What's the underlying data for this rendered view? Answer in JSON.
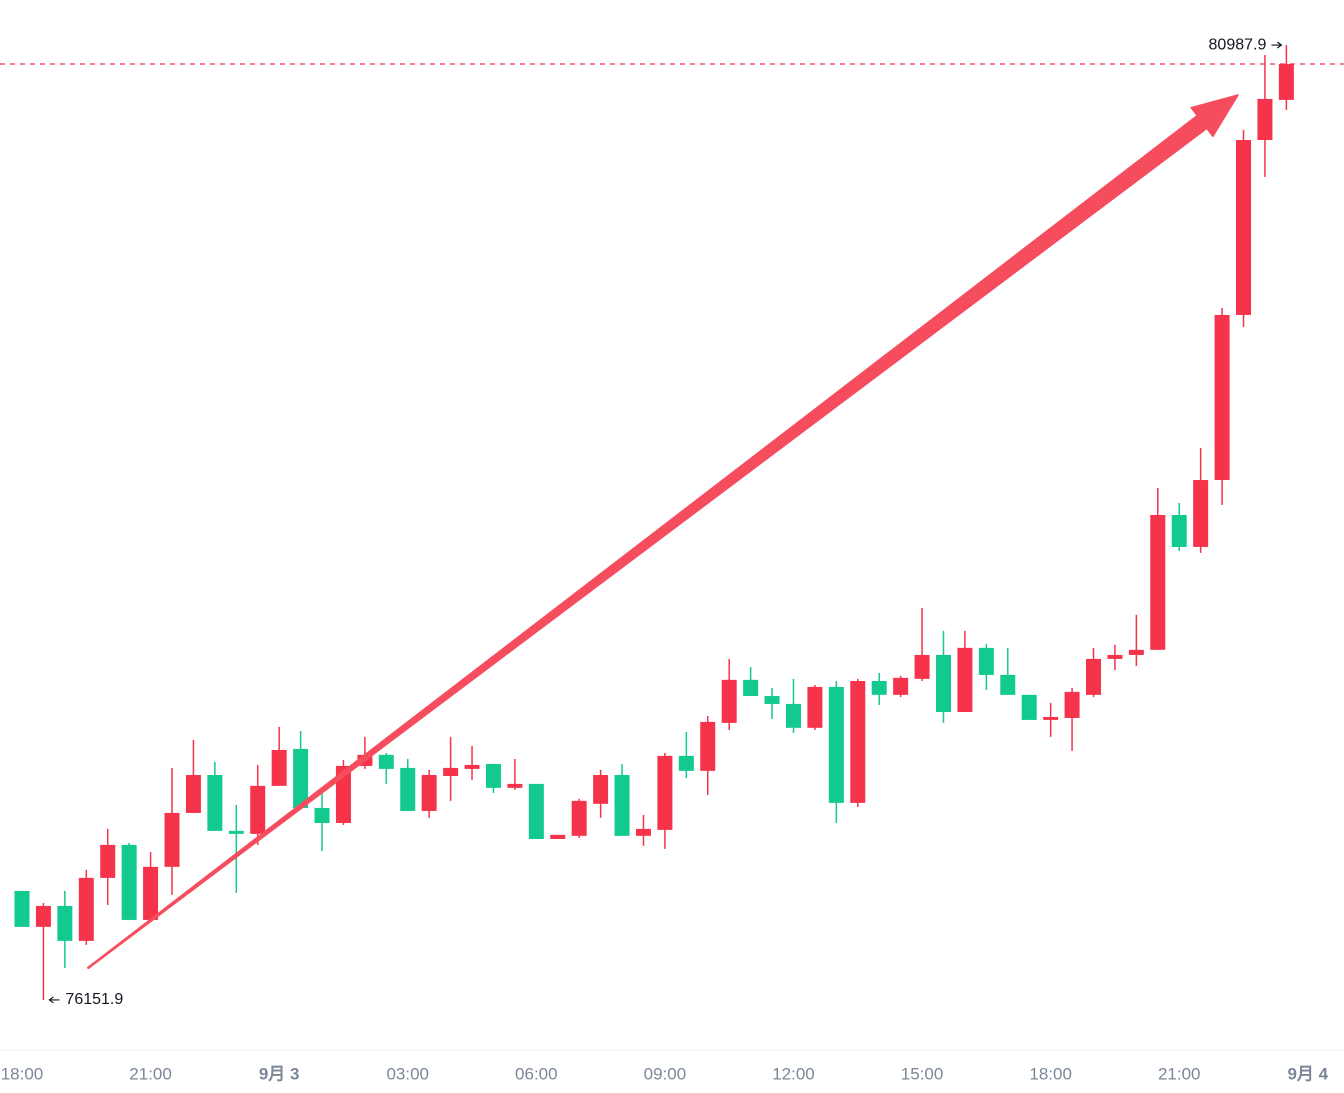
{
  "chart_data": {
    "type": "candlestick",
    "categories": [
      "18:00",
      null,
      null,
      null,
      null,
      null,
      "21:00",
      null,
      null,
      null,
      null,
      null,
      "9月 3",
      null,
      null,
      null,
      null,
      null,
      "03:00",
      null,
      null,
      null,
      null,
      null,
      "06:00",
      null,
      null,
      null,
      null,
      null,
      "09:00",
      null,
      null,
      null,
      null,
      null,
      "12:00",
      null,
      null,
      null,
      null,
      null,
      "15:00",
      null,
      null,
      null,
      null,
      null,
      "18:00",
      null,
      null,
      null,
      null,
      null,
      "21:00",
      null,
      null,
      null,
      null,
      null,
      "9月 4"
    ],
    "open": [
      76704,
      76522,
      76628,
      76451,
      76770,
      76937,
      76557,
      76826,
      77099,
      77291,
      77008,
      76993,
      77236,
      77423,
      77124,
      77048,
      77337,
      77393,
      77327,
      77109,
      77286,
      77322,
      77347,
      77226,
      77246,
      76967,
      76983,
      77145,
      77291,
      76983,
      77013,
      77388,
      77312,
      77555,
      77773,
      77691,
      77651,
      77530,
      77737,
      77150,
      77767,
      77697,
      77778,
      77899,
      77610,
      77935,
      77798,
      77697,
      77570,
      77580,
      77697,
      77879,
      77899,
      77925,
      78608,
      78446,
      78785,
      79621,
      80507,
      80710,
      null
    ],
    "high": [
      76704,
      76643,
      76704,
      76811,
      77018,
      76947,
      76901,
      77327,
      77469,
      77357,
      77140,
      77342,
      77535,
      77514,
      77216,
      77367,
      77484,
      77403,
      77372,
      77317,
      77484,
      77438,
      77347,
      77372,
      77246,
      76988,
      77170,
      77317,
      77347,
      77089,
      77403,
      77509,
      77590,
      77879,
      77838,
      77732,
      77778,
      77747,
      77767,
      77778,
      77808,
      77793,
      78137,
      78021,
      78021,
      77955,
      77935,
      77697,
      77656,
      77732,
      77935,
      77950,
      78102,
      78745,
      78669,
      78947,
      79656,
      80558,
      80937,
      80987.9,
      null
    ],
    "low": [
      76522,
      76151.9,
      76314,
      76431,
      76633,
      76557,
      76557,
      76684,
      77099,
      77008,
      76694,
      76937,
      77236,
      77124,
      76906,
      77038,
      77322,
      77246,
      77109,
      77074,
      77160,
      77266,
      77200,
      77216,
      76967,
      76967,
      76972,
      77074,
      76983,
      76932,
      76917,
      77276,
      77190,
      77519,
      77691,
      77575,
      77504,
      77519,
      77048,
      77129,
      77646,
      77686,
      77767,
      77555,
      77610,
      77722,
      77697,
      77570,
      77484,
      77413,
      77686,
      77823,
      77843,
      77925,
      78426,
      78416,
      78659,
      79560,
      80320,
      80659,
      null
    ],
    "close": [
      76522,
      76628,
      76451,
      76770,
      76937,
      76557,
      76826,
      77099,
      77291,
      77008,
      76993,
      77236,
      77418,
      77124,
      77048,
      77337,
      77393,
      77322,
      77109,
      77291,
      77327,
      77342,
      77226,
      77246,
      76967,
      76988,
      77160,
      77291,
      76983,
      77018,
      77388,
      77312,
      77560,
      77773,
      77691,
      77651,
      77530,
      77737,
      77150,
      77767,
      77697,
      77783,
      77899,
      77610,
      77935,
      77798,
      77697,
      77570,
      77585,
      77712,
      77879,
      77899,
      77925,
      78608,
      78446,
      78785,
      79621,
      80507,
      80715,
      80892,
      null
    ],
    "up_color": "#f5334a",
    "down_color": "#12c98f",
    "last_price_line": true,
    "ylim": [
      75949,
      81216
    ]
  }
}
